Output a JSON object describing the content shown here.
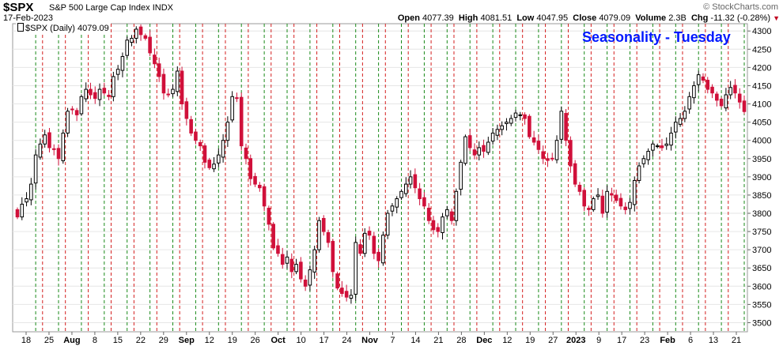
{
  "header": {
    "symbol": "$SPX",
    "name": "S&P 500 Large Cap Index",
    "exchange": "INDX",
    "date": "17-Feb-2023",
    "brand": "© StockCharts.com",
    "open_label": "Open",
    "open": "4077.39",
    "high_label": "High",
    "high": "4081.51",
    "low_label": "Low",
    "low": "4047.95",
    "close_label": "Close",
    "close": "4079.09",
    "volume_label": "Volume",
    "volume": "2.3B",
    "chg_label": "Chg",
    "chg": "-11.32 (-0.28%)",
    "legend": "$SPX (Daily) 4079.09"
  },
  "chart_data": {
    "type": "candlestick",
    "title": "Seasonality - Tuesday",
    "ylim": [
      3475,
      4320
    ],
    "y_ticks": [
      3500,
      3550,
      3600,
      3650,
      3700,
      3750,
      3800,
      3850,
      3900,
      3950,
      4000,
      4050,
      4100,
      4150,
      4200,
      4250,
      4300
    ],
    "x_tick_labels": [
      "18",
      "25",
      "Aug",
      "8",
      "15",
      "22",
      "29",
      "Sep",
      "12",
      "19",
      "26",
      "Oct",
      "10",
      "17",
      "24",
      "Nov",
      "7",
      "14",
      "21",
      "28",
      "Dec",
      "12",
      "19",
      "27",
      "2023",
      "9",
      "17",
      "23",
      "Feb",
      "6",
      "13",
      "21"
    ],
    "month_labels": [
      "Aug",
      "Sep",
      "Oct",
      "Nov",
      "Dec",
      "2023",
      "Feb"
    ],
    "grid": true,
    "vertical_markers": "Tuesday sessions (green dashed) and following session (red dashed)",
    "colors": {
      "up": "#ffffff",
      "down": "#d0103a",
      "tuesday_line": "#1a8a1a",
      "other_line": "#d42020",
      "title": "#0018ff"
    },
    "closes": [
      3790,
      3825,
      3840,
      3880,
      3960,
      3990,
      4015,
      3980,
      3975,
      3950,
      4020,
      4080,
      4085,
      4070,
      4120,
      4140,
      4125,
      4115,
      4140,
      4130,
      4120,
      4175,
      4195,
      4230,
      4275,
      4280,
      4305,
      4290,
      4280,
      4240,
      4210,
      4175,
      4130,
      4125,
      4140,
      4190,
      4100,
      4060,
      4020,
      4000,
      3985,
      3940,
      3925,
      3935,
      3960,
      4000,
      4050,
      4120,
      4115,
      3985,
      3950,
      3895,
      3880,
      3870,
      3820,
      3770,
      3705,
      3690,
      3660,
      3680,
      3640,
      3660,
      3620,
      3600,
      3645,
      3700,
      3780,
      3750,
      3720,
      3640,
      3595,
      3580,
      3570,
      3575,
      3720,
      3690,
      3745,
      3740,
      3690,
      3670,
      3740,
      3800,
      3820,
      3840,
      3860,
      3880,
      3900,
      3870,
      3840,
      3820,
      3780,
      3755,
      3750,
      3790,
      3810,
      3780,
      3860,
      3940,
      4010,
      3980,
      3960,
      3980,
      3970,
      3995,
      4020,
      4030,
      4040,
      4050,
      4060,
      4075,
      4070,
      4060,
      4010,
      3995,
      3975,
      3950,
      3945,
      3950,
      4000,
      4080,
      4000,
      3930,
      3880,
      3860,
      3820,
      3810,
      3840,
      3850,
      3800,
      3860,
      3850,
      3835,
      3820,
      3810,
      3830,
      3890,
      3930,
      3950,
      3970,
      3990,
      3985,
      3980,
      3990,
      4020,
      4050,
      4060,
      4080,
      4120,
      4150,
      4180,
      4165,
      4140,
      4130,
      4110,
      4095,
      4125,
      4145,
      4130,
      4105,
      4079
    ],
    "candles": [
      {
        "open": 3785,
        "high": 3795,
        "low": 3740,
        "close": 3760,
        "dir": "down"
      }
    ]
  }
}
